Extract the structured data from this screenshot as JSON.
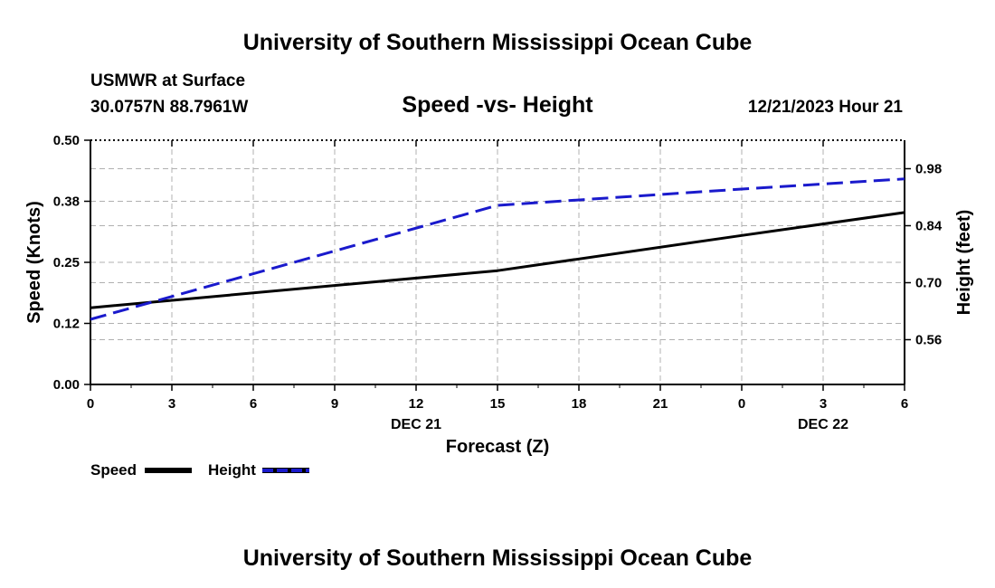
{
  "chart_data": {
    "type": "line",
    "title": "University of Southern Mississippi Ocean Cube",
    "subtitle": "Speed -vs- Height",
    "footer_title": "University of Southern Mississippi Ocean Cube",
    "station": "USMWR at Surface",
    "location": "30.0757N  88.7961W",
    "timestamp": "12/21/2023 Hour 21",
    "xlabel": "Forecast (Z)",
    "ylabel": "Speed (Knots)",
    "y2label": "Height (feet)",
    "x_ticks": [
      "0",
      "3",
      "6",
      "9",
      "12",
      "15",
      "18",
      "21",
      "0",
      "3",
      "6"
    ],
    "x_tick_hours": [
      0,
      3,
      6,
      9,
      12,
      15,
      18,
      21,
      24,
      27,
      30
    ],
    "date_labels": [
      {
        "label": "DEC 21",
        "hour": 12
      },
      {
        "label": "DEC 22",
        "hour": 27
      }
    ],
    "xlim": [
      0,
      30
    ],
    "ylim": [
      0,
      0.5
    ],
    "y_ticks": [
      "0.00",
      "0.12",
      "0.25",
      "0.38",
      "0.50"
    ],
    "y_tick_values": [
      0,
      0.125,
      0.25,
      0.375,
      0.5
    ],
    "y2lim": [
      0.45,
      1.05
    ],
    "y2_ticks": [
      "0.56",
      "0.70",
      "0.84",
      "0.98"
    ],
    "y2_tick_values": [
      0.56,
      0.7,
      0.84,
      0.98
    ],
    "grid": true,
    "series": [
      {
        "name": "Speed",
        "axis": "left",
        "color": "#000000",
        "dash": "solid",
        "x": [
          0,
          15,
          24,
          30
        ],
        "values": [
          0.157,
          0.233,
          0.305,
          0.352
        ]
      },
      {
        "name": "Height",
        "axis": "right",
        "color": "#1a1acc",
        "dash": "dashed",
        "x": [
          0,
          15,
          24,
          30
        ],
        "values": [
          0.61,
          0.89,
          0.93,
          0.955
        ]
      }
    ],
    "legend": [
      "Speed",
      "Height"
    ]
  }
}
